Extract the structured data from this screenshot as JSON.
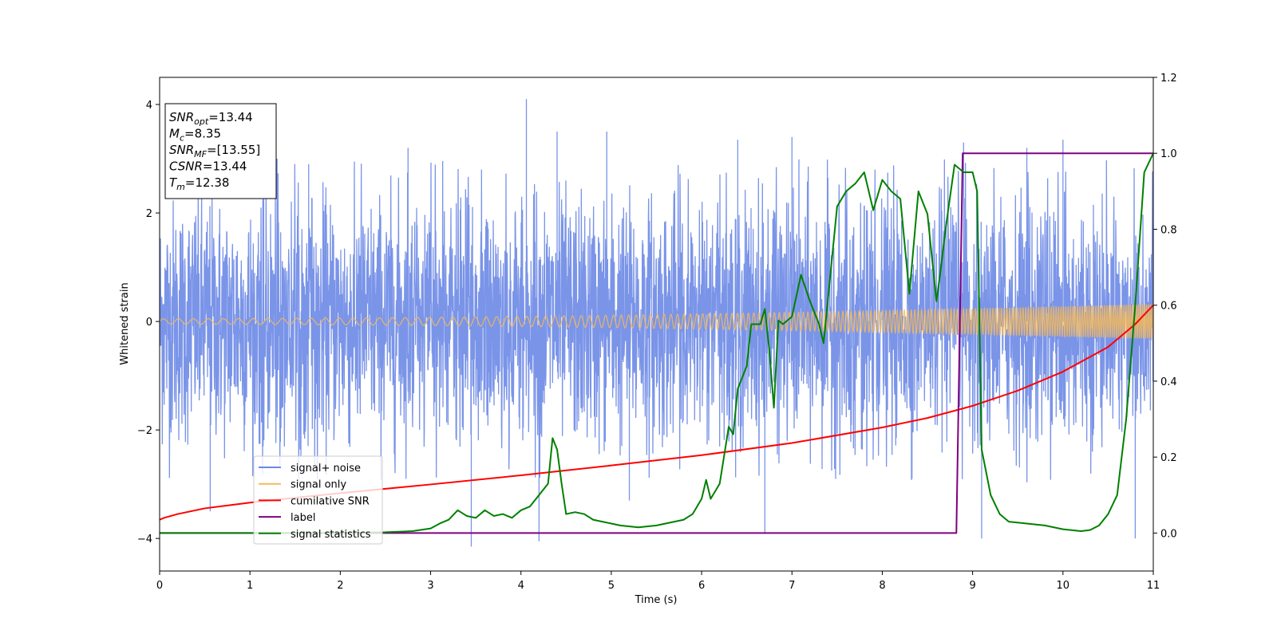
{
  "chart_data": {
    "type": "line",
    "title": "",
    "xlabel": "Time (s)",
    "ylabel": "Whitened strain",
    "xlim": [
      0,
      11
    ],
    "ylim_left": [
      -4.6,
      4.5
    ],
    "ylim_right": [
      -0.1,
      1.2
    ],
    "x_ticks": [
      "0",
      "1",
      "2",
      "3",
      "4",
      "5",
      "6",
      "7",
      "8",
      "9",
      "10",
      "11"
    ],
    "y_ticks_left": [
      "−4",
      "−2",
      "0",
      "2",
      "4"
    ],
    "y_ticks_right": [
      "0.0",
      "0.2",
      "0.4",
      "0.6",
      "0.8",
      "1.0",
      "1.2"
    ],
    "grid": false,
    "legend_position": "lower-left",
    "legend": [
      {
        "name": "signal+ noise",
        "color": "#6b88e6"
      },
      {
        "name": "signal only",
        "color": "#f5b95a"
      },
      {
        "name": "cumilative SNR",
        "color": "#ff0000"
      },
      {
        "name": "label",
        "color": "#800080"
      },
      {
        "name": "signal statistics",
        "color": "#008000"
      }
    ],
    "annotation_box": {
      "position": "top-left",
      "lines": [
        {
          "sym": "SNR",
          "sub": "opt",
          "val": "=13.44"
        },
        {
          "sym": "M",
          "sub": "c",
          "val": "=8.35"
        },
        {
          "sym": "SNR",
          "sub": "MF",
          "val": "=[13.55]"
        },
        {
          "sym": "CSNR",
          "sub": "",
          "val": "=13.44"
        },
        {
          "sym": "T",
          "sub": "m",
          "val": "=12.38"
        }
      ]
    },
    "series": [
      {
        "name": "signal+ noise",
        "axis": "left",
        "style": "noise band",
        "approx_std": 1.1,
        "peaks": [
          {
            "x": 0.56,
            "y": -3.5
          },
          {
            "x": 1.3,
            "y": 3.0
          },
          {
            "x": 1.65,
            "y": 2.9
          },
          {
            "x": 2.75,
            "y": 3.2
          },
          {
            "x": 3.45,
            "y": -4.15
          },
          {
            "x": 4.06,
            "y": 4.1
          },
          {
            "x": 4.2,
            "y": -4.05
          },
          {
            "x": 4.4,
            "y": 3.5
          },
          {
            "x": 4.95,
            "y": 3.5
          },
          {
            "x": 5.2,
            "y": -3.3
          },
          {
            "x": 6.4,
            "y": 3.35
          },
          {
            "x": 6.7,
            "y": -3.9
          },
          {
            "x": 7.0,
            "y": 3.4
          },
          {
            "x": 8.9,
            "y": 3.3
          },
          {
            "x": 9.1,
            "y": -4.0
          },
          {
            "x": 9.6,
            "y": 3.2
          },
          {
            "x": 10.0,
            "y": 3.35
          },
          {
            "x": 10.8,
            "y": -4.0
          }
        ]
      },
      {
        "name": "signal only",
        "axis": "left",
        "style": "chirp",
        "amplitude_start": 0.05,
        "amplitude_end": 0.32
      },
      {
        "name": "cumilative SNR",
        "axis": "right",
        "x": [
          0,
          0.05,
          0.2,
          0.5,
          1,
          1.5,
          2,
          3,
          4,
          5,
          6,
          7,
          8,
          8.5,
          9,
          9.5,
          10,
          10.5,
          10.8,
          11
        ],
        "y": [
          0.035,
          0.04,
          0.05,
          0.065,
          0.08,
          0.093,
          0.105,
          0.128,
          0.152,
          0.178,
          0.205,
          0.237,
          0.278,
          0.303,
          0.335,
          0.375,
          0.425,
          0.49,
          0.55,
          0.6
        ]
      },
      {
        "name": "label",
        "axis": "right",
        "x": [
          0,
          8.82,
          8.89,
          11
        ],
        "y": [
          0,
          0,
          1,
          1
        ]
      },
      {
        "name": "signal statistics",
        "axis": "right",
        "x": [
          0,
          2,
          2.5,
          2.8,
          3.0,
          3.1,
          3.2,
          3.3,
          3.4,
          3.5,
          3.6,
          3.7,
          3.8,
          3.9,
          4.0,
          4.1,
          4.2,
          4.3,
          4.35,
          4.4,
          4.45,
          4.5,
          4.6,
          4.7,
          4.8,
          4.9,
          5.0,
          5.1,
          5.3,
          5.5,
          5.7,
          5.8,
          5.9,
          6.0,
          6.05,
          6.1,
          6.2,
          6.3,
          6.35,
          6.4,
          6.5,
          6.55,
          6.6,
          6.65,
          6.7,
          6.75,
          6.8,
          6.85,
          6.9,
          7.0,
          7.1,
          7.2,
          7.3,
          7.35,
          7.4,
          7.5,
          7.6,
          7.7,
          7.8,
          7.9,
          8.0,
          8.1,
          8.2,
          8.3,
          8.4,
          8.5,
          8.6,
          8.65,
          8.7,
          8.8,
          8.9,
          9.0,
          9.05,
          9.1,
          9.2,
          9.3,
          9.4,
          9.6,
          9.8,
          10.0,
          10.2,
          10.3,
          10.4,
          10.5,
          10.6,
          10.7,
          10.8,
          10.9,
          11.0
        ],
        "y": [
          0,
          0,
          0.002,
          0.005,
          0.012,
          0.025,
          0.035,
          0.06,
          0.045,
          0.04,
          0.06,
          0.045,
          0.05,
          0.04,
          0.06,
          0.07,
          0.1,
          0.13,
          0.25,
          0.22,
          0.13,
          0.05,
          0.055,
          0.05,
          0.035,
          0.03,
          0.025,
          0.02,
          0.015,
          0.02,
          0.03,
          0.035,
          0.05,
          0.09,
          0.14,
          0.09,
          0.13,
          0.28,
          0.26,
          0.38,
          0.44,
          0.55,
          0.55,
          0.55,
          0.59,
          0.48,
          0.33,
          0.56,
          0.55,
          0.57,
          0.68,
          0.61,
          0.55,
          0.5,
          0.62,
          0.86,
          0.9,
          0.92,
          0.95,
          0.85,
          0.93,
          0.9,
          0.88,
          0.63,
          0.9,
          0.84,
          0.61,
          0.7,
          0.8,
          0.97,
          0.95,
          0.95,
          0.9,
          0.22,
          0.1,
          0.05,
          0.03,
          0.025,
          0.02,
          0.01,
          0.005,
          0.008,
          0.02,
          0.05,
          0.1,
          0.3,
          0.6,
          0.95,
          1.0
        ]
      }
    ]
  }
}
